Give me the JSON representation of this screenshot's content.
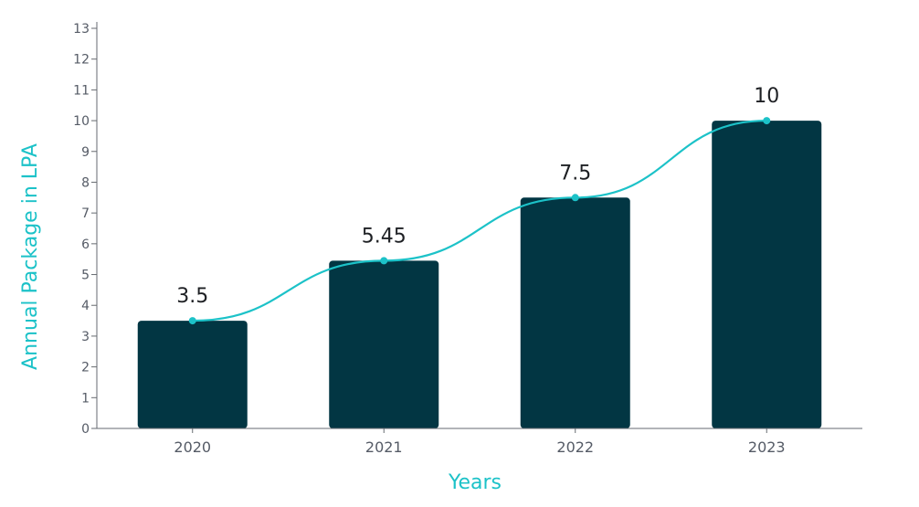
{
  "chart_data": {
    "type": "bar",
    "categories": [
      "2020",
      "2021",
      "2022",
      "2023"
    ],
    "values": [
      3.5,
      5.45,
      7.5,
      10
    ],
    "data_labels": [
      "3.5",
      "5.45",
      "7.5",
      "10"
    ],
    "overlay_line": {
      "type": "line",
      "smooth": true,
      "values": [
        3.5,
        5.45,
        7.5,
        10
      ]
    },
    "title": "",
    "xlabel": "Years",
    "ylabel": "Annual Package in LPA",
    "ylim": [
      0,
      13
    ],
    "yticks": [
      "0",
      "1",
      "2",
      "3",
      "4",
      "5",
      "6",
      "7",
      "8",
      "9",
      "10",
      "11",
      "12",
      "13"
    ],
    "grid": false,
    "legend": "none"
  },
  "colors": {
    "bar": "#023643",
    "line": "#1cc2c8",
    "axis_title": "#1cc2c8",
    "axis": "#666a70"
  }
}
